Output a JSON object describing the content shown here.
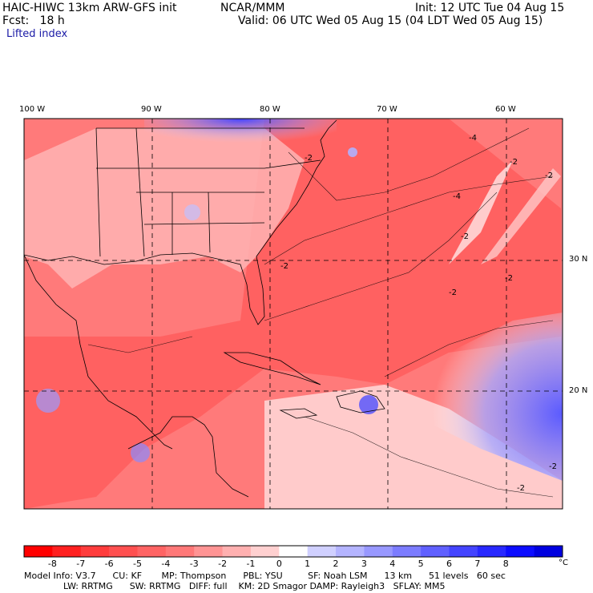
{
  "header": {
    "model": "HAIC-HIWC 13km ARW-GFS init",
    "org": "NCAR/MMM",
    "init": "Init: 12 UTC Tue 04 Aug 15",
    "fcst": "Fcst:   18 h",
    "valid": "Valid: 06 UTC Wed 05 Aug 15 (04 LDT Wed 05 Aug 15)",
    "field": "Lifted index"
  },
  "map": {
    "lon_labels": [
      "100 W",
      "90 W",
      "80 W",
      "70 W",
      "60 W"
    ],
    "lat_labels": [
      "30 N",
      "20 N"
    ],
    "contour_labels": [
      "-2",
      "-4",
      "-2",
      "-2",
      "-2",
      "-2",
      "-2",
      "-4",
      "-2",
      "-2",
      "-2"
    ]
  },
  "colorbar": {
    "ticks": [
      "-8",
      "-7",
      "-6",
      "-5",
      "-4",
      "-3",
      "-2",
      "-1",
      "0",
      "1",
      "2",
      "3",
      "4",
      "5",
      "6",
      "7",
      "8"
    ],
    "unit": "°C",
    "colors": [
      "#ff0000",
      "#ff2020",
      "#ff3c3c",
      "#ff5050",
      "#ff6464",
      "#ff7878",
      "#ff9494",
      "#ffb0b0",
      "#ffd0d0",
      "#ffffff",
      "#d0d0ff",
      "#b4b4ff",
      "#9898ff",
      "#7c7cff",
      "#6060ff",
      "#4444ff",
      "#2828ff",
      "#0c0cff",
      "#0000e0"
    ]
  },
  "model_info": {
    "line1": "Model Info: V3.7      CU: KF       MP: Thompson      PBL: YSU         SF: Noah LSM      13 km      51 levels   60 sec",
    "line2": "              LW: RRTMG      SW: RRTMG   DIFF: full    KM: 2D Smagor DAMP: Rayleigh3   SFLAY: MM5"
  }
}
